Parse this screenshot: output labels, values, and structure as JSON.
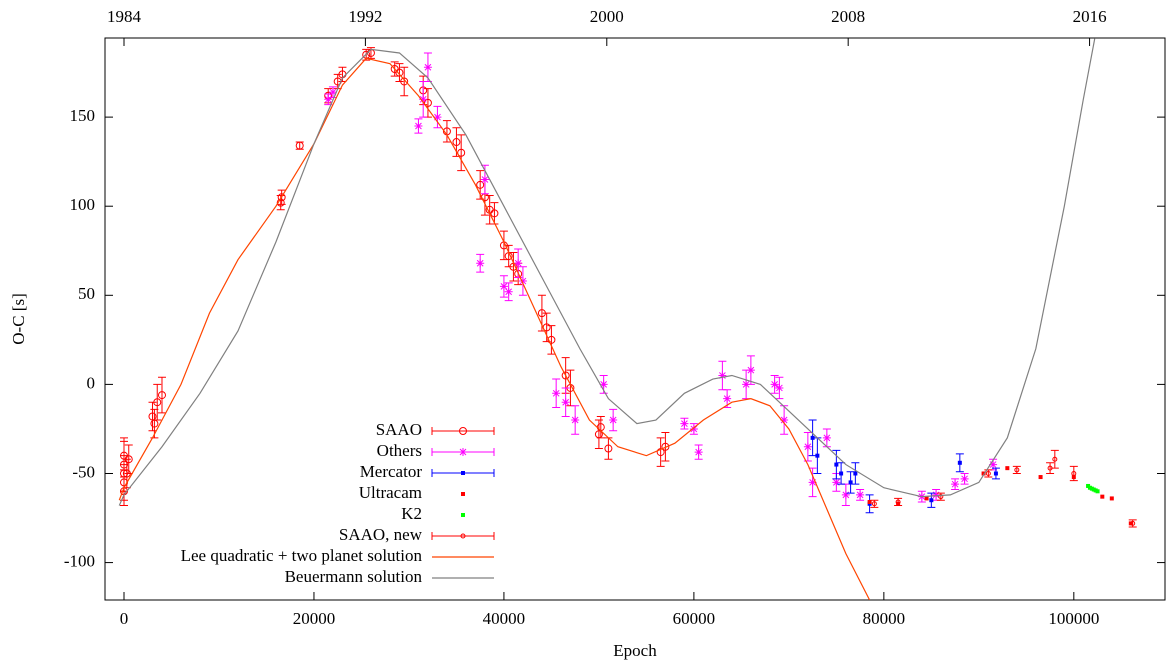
{
  "chart_data": {
    "type": "scatter",
    "xlabel": "Epoch",
    "ylabel": "O-C [s]",
    "xlim": [
      -2000,
      109600
    ],
    "xticks": [
      0,
      20000,
      40000,
      60000,
      80000,
      100000
    ],
    "ylim": [
      -121,
      194.4
    ],
    "yticks": [
      -100,
      -50,
      0,
      50,
      100,
      150
    ],
    "x2lim": [
      1983.37,
      2018.5
    ],
    "x2ticks": [
      1984,
      1992,
      2000,
      2008,
      2016
    ],
    "legend": "bottom",
    "series": [
      {
        "name": "SAAO",
        "color": "#ff0000",
        "marker": "circle",
        "x": [
          0,
          0,
          0,
          0,
          0,
          300,
          500,
          3000,
          3200,
          3500,
          4000,
          16500,
          16600,
          18500,
          21500,
          22500,
          23000,
          25500,
          26000,
          28500,
          29000,
          29500,
          31500,
          32000,
          34000,
          35000,
          35500,
          37500,
          38000,
          38500,
          39000,
          40000,
          40500,
          41000,
          41500,
          44000,
          44500,
          45000,
          46500,
          47000,
          50000,
          50200,
          51000,
          56500,
          57000
        ],
        "values": [
          -45,
          -55,
          -60,
          -50,
          -40,
          -50,
          -42,
          -18,
          -22,
          -10,
          -6,
          102,
          105,
          134,
          162,
          170,
          174,
          185,
          186,
          177,
          175,
          170,
          165,
          158,
          142,
          136,
          130,
          112,
          105,
          98,
          96,
          78,
          72,
          66,
          62,
          40,
          32,
          25,
          5,
          -2,
          -28,
          -24,
          -36,
          -38,
          -35
        ],
        "errors": [
          15,
          10,
          8,
          10,
          8,
          8,
          8,
          8,
          8,
          10,
          10,
          4,
          4,
          2,
          4,
          4,
          4,
          3,
          3,
          4,
          5,
          8,
          8,
          8,
          6,
          8,
          10,
          8,
          10,
          8,
          6,
          8,
          6,
          8,
          6,
          10,
          8,
          8,
          10,
          10,
          8,
          6,
          6,
          8,
          8
        ]
      },
      {
        "name": "Others",
        "color": "#ff00ff",
        "marker": "star",
        "x": [
          21500,
          22000,
          31000,
          32000,
          31500,
          33000,
          37500,
          38000,
          40000,
          40500,
          41500,
          42000,
          45500,
          46500,
          47500,
          50500,
          51500,
          59000,
          60000,
          60500,
          63000,
          63500,
          65500,
          66000,
          68500,
          69000,
          69500,
          72000,
          72500,
          74000,
          75000,
          76000,
          77500,
          84000,
          85500,
          87500,
          88500,
          91500
        ],
        "values": [
          160,
          164,
          145,
          178,
          160,
          150,
          68,
          115,
          55,
          52,
          68,
          58,
          -5,
          -10,
          -20,
          0,
          -20,
          -22,
          -25,
          -38,
          5,
          -8,
          0,
          8,
          0,
          -2,
          -20,
          -35,
          -55,
          -30,
          -55,
          -62,
          -62,
          -63,
          -62,
          -56,
          -53,
          -45
        ],
        "errors": [
          3,
          3,
          4,
          8,
          10,
          6,
          5,
          8,
          6,
          5,
          8,
          8,
          8,
          8,
          8,
          5,
          6,
          3,
          3,
          4,
          8,
          5,
          8,
          8,
          5,
          6,
          8,
          8,
          8,
          5,
          5,
          6,
          3,
          3,
          3,
          3,
          3,
          3
        ]
      },
      {
        "name": "Mercator",
        "color": "#0000ff",
        "marker": "square",
        "x": [
          72500,
          73000,
          75000,
          75500,
          76500,
          77000,
          78500,
          85000,
          88000,
          91800
        ],
        "values": [
          -30,
          -40,
          -45,
          -50,
          -55,
          -50,
          -67,
          -65,
          -44,
          -50
        ],
        "errors": [
          10,
          10,
          8,
          6,
          6,
          6,
          5,
          4,
          5,
          3
        ]
      },
      {
        "name": "Ultracam",
        "color": "#ff0000",
        "marker": "square",
        "x": [
          78500,
          81500,
          84500,
          90500,
          93000,
          96500,
          100000,
          103000,
          104000,
          106000
        ],
        "values": [
          -66,
          -67,
          -64,
          -50,
          -47,
          -52,
          -52,
          -63,
          -64,
          -78
        ]
      },
      {
        "name": "K2",
        "color": "#00ff00",
        "marker": "square",
        "x": [
          101500,
          101700,
          101900,
          102100,
          102300,
          102500
        ],
        "values": [
          -57,
          -58,
          -58.5,
          -59,
          -59.5,
          -60
        ]
      },
      {
        "name": "SAAO, new",
        "color": "#ff0000",
        "marker": "small-circle",
        "x": [
          79000,
          81500,
          86000,
          91000,
          94000,
          97500,
          98000,
          100000,
          106200
        ],
        "values": [
          -67,
          -66,
          -63,
          -50,
          -48,
          -47,
          -42,
          -50,
          -78
        ],
        "errors": [
          2,
          2,
          2,
          2,
          2,
          3,
          5,
          4,
          2
        ]
      },
      {
        "name": "Lee quadratic + two planet solution",
        "color": "#ff4500",
        "marker": "line",
        "x": [
          -500,
          0,
          3000,
          6000,
          9000,
          12000,
          16000,
          20000,
          23000,
          25500,
          28000,
          31000,
          34000,
          37000,
          40000,
          43000,
          46000,
          49000,
          52000,
          55000,
          58000,
          61000,
          64000,
          66000,
          68000,
          70000,
          72000,
          74000,
          76000,
          78500
        ],
        "values": [
          -65,
          -58,
          -30,
          0,
          40,
          70,
          100,
          135,
          168,
          183,
          180,
          162,
          140,
          112,
          80,
          45,
          10,
          -20,
          -35,
          -40,
          -33,
          -20,
          -10,
          -8,
          -12,
          -25,
          -45,
          -70,
          -95,
          -121
        ]
      },
      {
        "name": "Beuermann solution",
        "color": "#808080",
        "marker": "line",
        "x": [
          -500,
          0,
          4000,
          8000,
          12000,
          16000,
          20000,
          23000,
          26000,
          29000,
          32000,
          36000,
          40000,
          44000,
          48000,
          51000,
          54000,
          56000,
          59000,
          62000,
          64000,
          67000,
          70000,
          73000,
          76000,
          80000,
          84000,
          87000,
          90000,
          93000,
          96000,
          99000,
          101000,
          102200
        ],
        "values": [
          -68,
          -62,
          -35,
          -5,
          30,
          80,
          135,
          172,
          188,
          186,
          172,
          140,
          100,
          60,
          20,
          -8,
          -22,
          -20,
          -5,
          3,
          5,
          0,
          -15,
          -30,
          -45,
          -58,
          -63,
          -62,
          -55,
          -30,
          20,
          100,
          160,
          194
        ]
      }
    ]
  }
}
